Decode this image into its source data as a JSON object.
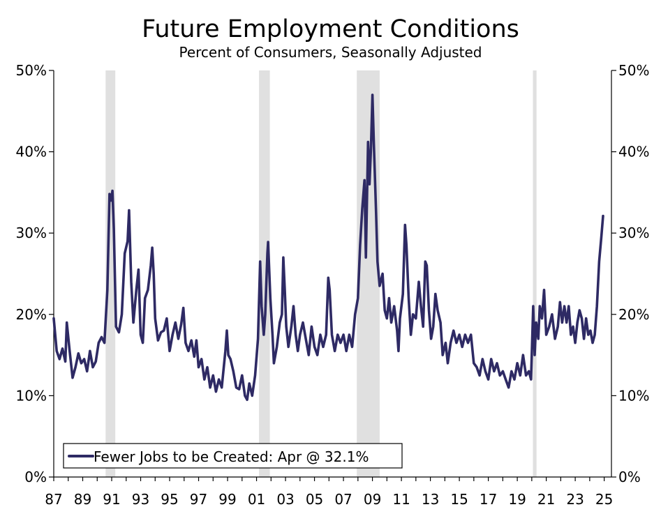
{
  "chart_data": {
    "type": "line",
    "title": "Future Employment Conditions",
    "subtitle": "Percent of Consumers, Seasonally Adjusted",
    "xlabel": "",
    "ylabel": "",
    "xlim": [
      1987.0,
      2025.5
    ],
    "ylim": [
      0,
      50
    ],
    "y_ticks": [
      "0%",
      "10%",
      "20%",
      "30%",
      "40%",
      "50%"
    ],
    "y_tick_values": [
      0,
      10,
      20,
      30,
      40,
      50
    ],
    "x_ticks": [
      "87",
      "89",
      "91",
      "93",
      "95",
      "97",
      "99",
      "01",
      "03",
      "05",
      "07",
      "09",
      "11",
      "13",
      "15",
      "17",
      "19",
      "21",
      "23",
      "25"
    ],
    "x_tick_values": [
      1987,
      1989,
      1991,
      1993,
      1995,
      1997,
      1999,
      2001,
      2003,
      2005,
      2007,
      2009,
      2011,
      2013,
      2015,
      2017,
      2019,
      2021,
      2023,
      2025
    ],
    "recessions": [
      {
        "start": 1990.58,
        "end": 1991.25
      },
      {
        "start": 2001.17,
        "end": 2001.92
      },
      {
        "start": 2007.92,
        "end": 2009.5
      },
      {
        "start": 2020.08,
        "end": 2020.33
      }
    ],
    "legend": "Fewer Jobs to be Created: Apr @ 32.1%",
    "series": [
      {
        "name": "Fewer Jobs to be Created",
        "color": "#2e2a64",
        "points": [
          [
            1987.0,
            19.5
          ],
          [
            1987.2,
            15.5
          ],
          [
            1987.4,
            14.5
          ],
          [
            1987.6,
            15.8
          ],
          [
            1987.8,
            14.2
          ],
          [
            1987.9,
            19.0
          ],
          [
            1988.1,
            15.5
          ],
          [
            1988.3,
            12.2
          ],
          [
            1988.5,
            13.5
          ],
          [
            1988.7,
            15.2
          ],
          [
            1988.9,
            14.0
          ],
          [
            1989.1,
            14.5
          ],
          [
            1989.3,
            13.0
          ],
          [
            1989.5,
            15.5
          ],
          [
            1989.7,
            13.5
          ],
          [
            1989.9,
            14.2
          ],
          [
            1990.1,
            16.5
          ],
          [
            1990.3,
            17.2
          ],
          [
            1990.5,
            16.5
          ],
          [
            1990.7,
            23.0
          ],
          [
            1990.85,
            34.8
          ],
          [
            1990.95,
            34.0
          ],
          [
            1991.05,
            35.2
          ],
          [
            1991.15,
            30.5
          ],
          [
            1991.3,
            18.5
          ],
          [
            1991.5,
            17.8
          ],
          [
            1991.7,
            20.0
          ],
          [
            1991.9,
            27.5
          ],
          [
            1992.1,
            29.0
          ],
          [
            1992.2,
            32.8
          ],
          [
            1992.35,
            24.0
          ],
          [
            1992.5,
            19.0
          ],
          [
            1992.7,
            23.0
          ],
          [
            1992.85,
            25.5
          ],
          [
            1993.0,
            17.5
          ],
          [
            1993.15,
            16.5
          ],
          [
            1993.3,
            22.0
          ],
          [
            1993.5,
            23.0
          ],
          [
            1993.7,
            26.0
          ],
          [
            1993.8,
            28.2
          ],
          [
            1993.9,
            25.0
          ],
          [
            1994.0,
            19.5
          ],
          [
            1994.2,
            16.8
          ],
          [
            1994.4,
            17.8
          ],
          [
            1994.6,
            18.0
          ],
          [
            1994.8,
            19.5
          ],
          [
            1995.0,
            15.5
          ],
          [
            1995.2,
            17.5
          ],
          [
            1995.4,
            19.0
          ],
          [
            1995.6,
            17.0
          ],
          [
            1995.8,
            18.8
          ],
          [
            1995.95,
            20.8
          ],
          [
            1996.1,
            16.5
          ],
          [
            1996.3,
            15.5
          ],
          [
            1996.5,
            16.8
          ],
          [
            1996.7,
            14.8
          ],
          [
            1996.85,
            16.8
          ],
          [
            1997.0,
            13.5
          ],
          [
            1997.2,
            14.5
          ],
          [
            1997.4,
            12.0
          ],
          [
            1997.6,
            13.5
          ],
          [
            1997.8,
            11.0
          ],
          [
            1998.0,
            12.5
          ],
          [
            1998.2,
            10.5
          ],
          [
            1998.4,
            12.0
          ],
          [
            1998.6,
            11.0
          ],
          [
            1998.85,
            15.5
          ],
          [
            1998.95,
            18.0
          ],
          [
            1999.05,
            15.0
          ],
          [
            1999.2,
            14.5
          ],
          [
            1999.4,
            13.0
          ],
          [
            1999.6,
            11.0
          ],
          [
            1999.8,
            10.8
          ],
          [
            2000.0,
            12.5
          ],
          [
            2000.2,
            10.0
          ],
          [
            2000.35,
            9.5
          ],
          [
            2000.5,
            11.5
          ],
          [
            2000.7,
            10.0
          ],
          [
            2000.9,
            12.5
          ],
          [
            2001.1,
            17.0
          ],
          [
            2001.25,
            26.5
          ],
          [
            2001.35,
            21.0
          ],
          [
            2001.5,
            17.5
          ],
          [
            2001.6,
            20.0
          ],
          [
            2001.75,
            27.5
          ],
          [
            2001.8,
            28.9
          ],
          [
            2001.95,
            22.0
          ],
          [
            2002.1,
            17.5
          ],
          [
            2002.2,
            14.0
          ],
          [
            2002.4,
            16.0
          ],
          [
            2002.6,
            19.0
          ],
          [
            2002.75,
            20.0
          ],
          [
            2002.85,
            27.0
          ],
          [
            2002.95,
            23.0
          ],
          [
            2003.05,
            18.5
          ],
          [
            2003.2,
            16.0
          ],
          [
            2003.4,
            18.5
          ],
          [
            2003.55,
            21.0
          ],
          [
            2003.7,
            17.5
          ],
          [
            2003.85,
            15.5
          ],
          [
            2004.0,
            17.5
          ],
          [
            2004.2,
            19.0
          ],
          [
            2004.4,
            17.0
          ],
          [
            2004.6,
            15.0
          ],
          [
            2004.8,
            18.5
          ],
          [
            2005.0,
            16.0
          ],
          [
            2005.2,
            15.0
          ],
          [
            2005.4,
            17.5
          ],
          [
            2005.6,
            16.0
          ],
          [
            2005.8,
            17.5
          ],
          [
            2005.95,
            24.5
          ],
          [
            2006.05,
            23.0
          ],
          [
            2006.2,
            17.5
          ],
          [
            2006.4,
            15.5
          ],
          [
            2006.6,
            17.5
          ],
          [
            2006.8,
            16.5
          ],
          [
            2007.0,
            17.5
          ],
          [
            2007.2,
            15.5
          ],
          [
            2007.4,
            17.5
          ],
          [
            2007.6,
            16.0
          ],
          [
            2007.8,
            20.0
          ],
          [
            2008.0,
            22.0
          ],
          [
            2008.15,
            28.5
          ],
          [
            2008.3,
            33.0
          ],
          [
            2008.45,
            36.5
          ],
          [
            2008.55,
            27.0
          ],
          [
            2008.7,
            41.2
          ],
          [
            2008.8,
            36.0
          ],
          [
            2008.9,
            40.5
          ],
          [
            2009.0,
            47.0
          ],
          [
            2009.1,
            41.0
          ],
          [
            2009.25,
            32.5
          ],
          [
            2009.35,
            26.5
          ],
          [
            2009.5,
            23.5
          ],
          [
            2009.7,
            25.0
          ],
          [
            2009.85,
            20.5
          ],
          [
            2010.0,
            19.5
          ],
          [
            2010.15,
            22.0
          ],
          [
            2010.3,
            19.0
          ],
          [
            2010.5,
            21.0
          ],
          [
            2010.7,
            18.0
          ],
          [
            2010.8,
            15.5
          ],
          [
            2010.9,
            19.5
          ],
          [
            2011.1,
            22.5
          ],
          [
            2011.25,
            31.0
          ],
          [
            2011.35,
            28.5
          ],
          [
            2011.5,
            22.0
          ],
          [
            2011.65,
            17.5
          ],
          [
            2011.8,
            20.0
          ],
          [
            2012.0,
            19.5
          ],
          [
            2012.2,
            24.0
          ],
          [
            2012.35,
            21.0
          ],
          [
            2012.5,
            18.5
          ],
          [
            2012.65,
            26.5
          ],
          [
            2012.75,
            26.0
          ],
          [
            2012.9,
            20.5
          ],
          [
            2013.05,
            17.0
          ],
          [
            2013.2,
            18.5
          ],
          [
            2013.35,
            22.5
          ],
          [
            2013.5,
            20.5
          ],
          [
            2013.7,
            19.0
          ],
          [
            2013.85,
            15.0
          ],
          [
            2014.05,
            16.5
          ],
          [
            2014.2,
            14.0
          ],
          [
            2014.4,
            16.5
          ],
          [
            2014.6,
            18.0
          ],
          [
            2014.8,
            16.5
          ],
          [
            2015.0,
            17.5
          ],
          [
            2015.2,
            16.0
          ],
          [
            2015.4,
            17.5
          ],
          [
            2015.6,
            16.5
          ],
          [
            2015.8,
            17.5
          ],
          [
            2016.0,
            14.0
          ],
          [
            2016.2,
            13.5
          ],
          [
            2016.4,
            12.5
          ],
          [
            2016.6,
            14.5
          ],
          [
            2016.8,
            13.0
          ],
          [
            2017.0,
            12.0
          ],
          [
            2017.2,
            14.5
          ],
          [
            2017.4,
            13.0
          ],
          [
            2017.6,
            14.0
          ],
          [
            2017.8,
            12.5
          ],
          [
            2018.0,
            13.0
          ],
          [
            2018.2,
            12.0
          ],
          [
            2018.4,
            11.0
          ],
          [
            2018.6,
            13.0
          ],
          [
            2018.8,
            12.0
          ],
          [
            2019.0,
            14.0
          ],
          [
            2019.2,
            12.5
          ],
          [
            2019.4,
            15.0
          ],
          [
            2019.6,
            12.5
          ],
          [
            2019.8,
            13.0
          ],
          [
            2019.95,
            12.0
          ],
          [
            2020.1,
            21.0
          ],
          [
            2020.2,
            15.0
          ],
          [
            2020.3,
            19.0
          ],
          [
            2020.45,
            17.0
          ],
          [
            2020.55,
            21.0
          ],
          [
            2020.7,
            19.5
          ],
          [
            2020.85,
            23.0
          ],
          [
            2021.0,
            17.5
          ],
          [
            2021.2,
            18.5
          ],
          [
            2021.4,
            20.0
          ],
          [
            2021.6,
            17.0
          ],
          [
            2021.8,
            18.5
          ],
          [
            2021.95,
            21.5
          ],
          [
            2022.1,
            19.0
          ],
          [
            2022.25,
            21.0
          ],
          [
            2022.4,
            19.0
          ],
          [
            2022.55,
            21.0
          ],
          [
            2022.7,
            17.5
          ],
          [
            2022.85,
            18.5
          ],
          [
            2023.0,
            16.5
          ],
          [
            2023.15,
            19.0
          ],
          [
            2023.3,
            20.5
          ],
          [
            2023.45,
            19.5
          ],
          [
            2023.6,
            17.0
          ],
          [
            2023.75,
            19.5
          ],
          [
            2023.9,
            17.5
          ],
          [
            2024.05,
            18.0
          ],
          [
            2024.2,
            16.5
          ],
          [
            2024.35,
            17.5
          ],
          [
            2024.5,
            21.0
          ],
          [
            2024.65,
            26.5
          ],
          [
            2024.8,
            29.5
          ],
          [
            2024.92,
            32.1
          ]
        ]
      }
    ]
  }
}
